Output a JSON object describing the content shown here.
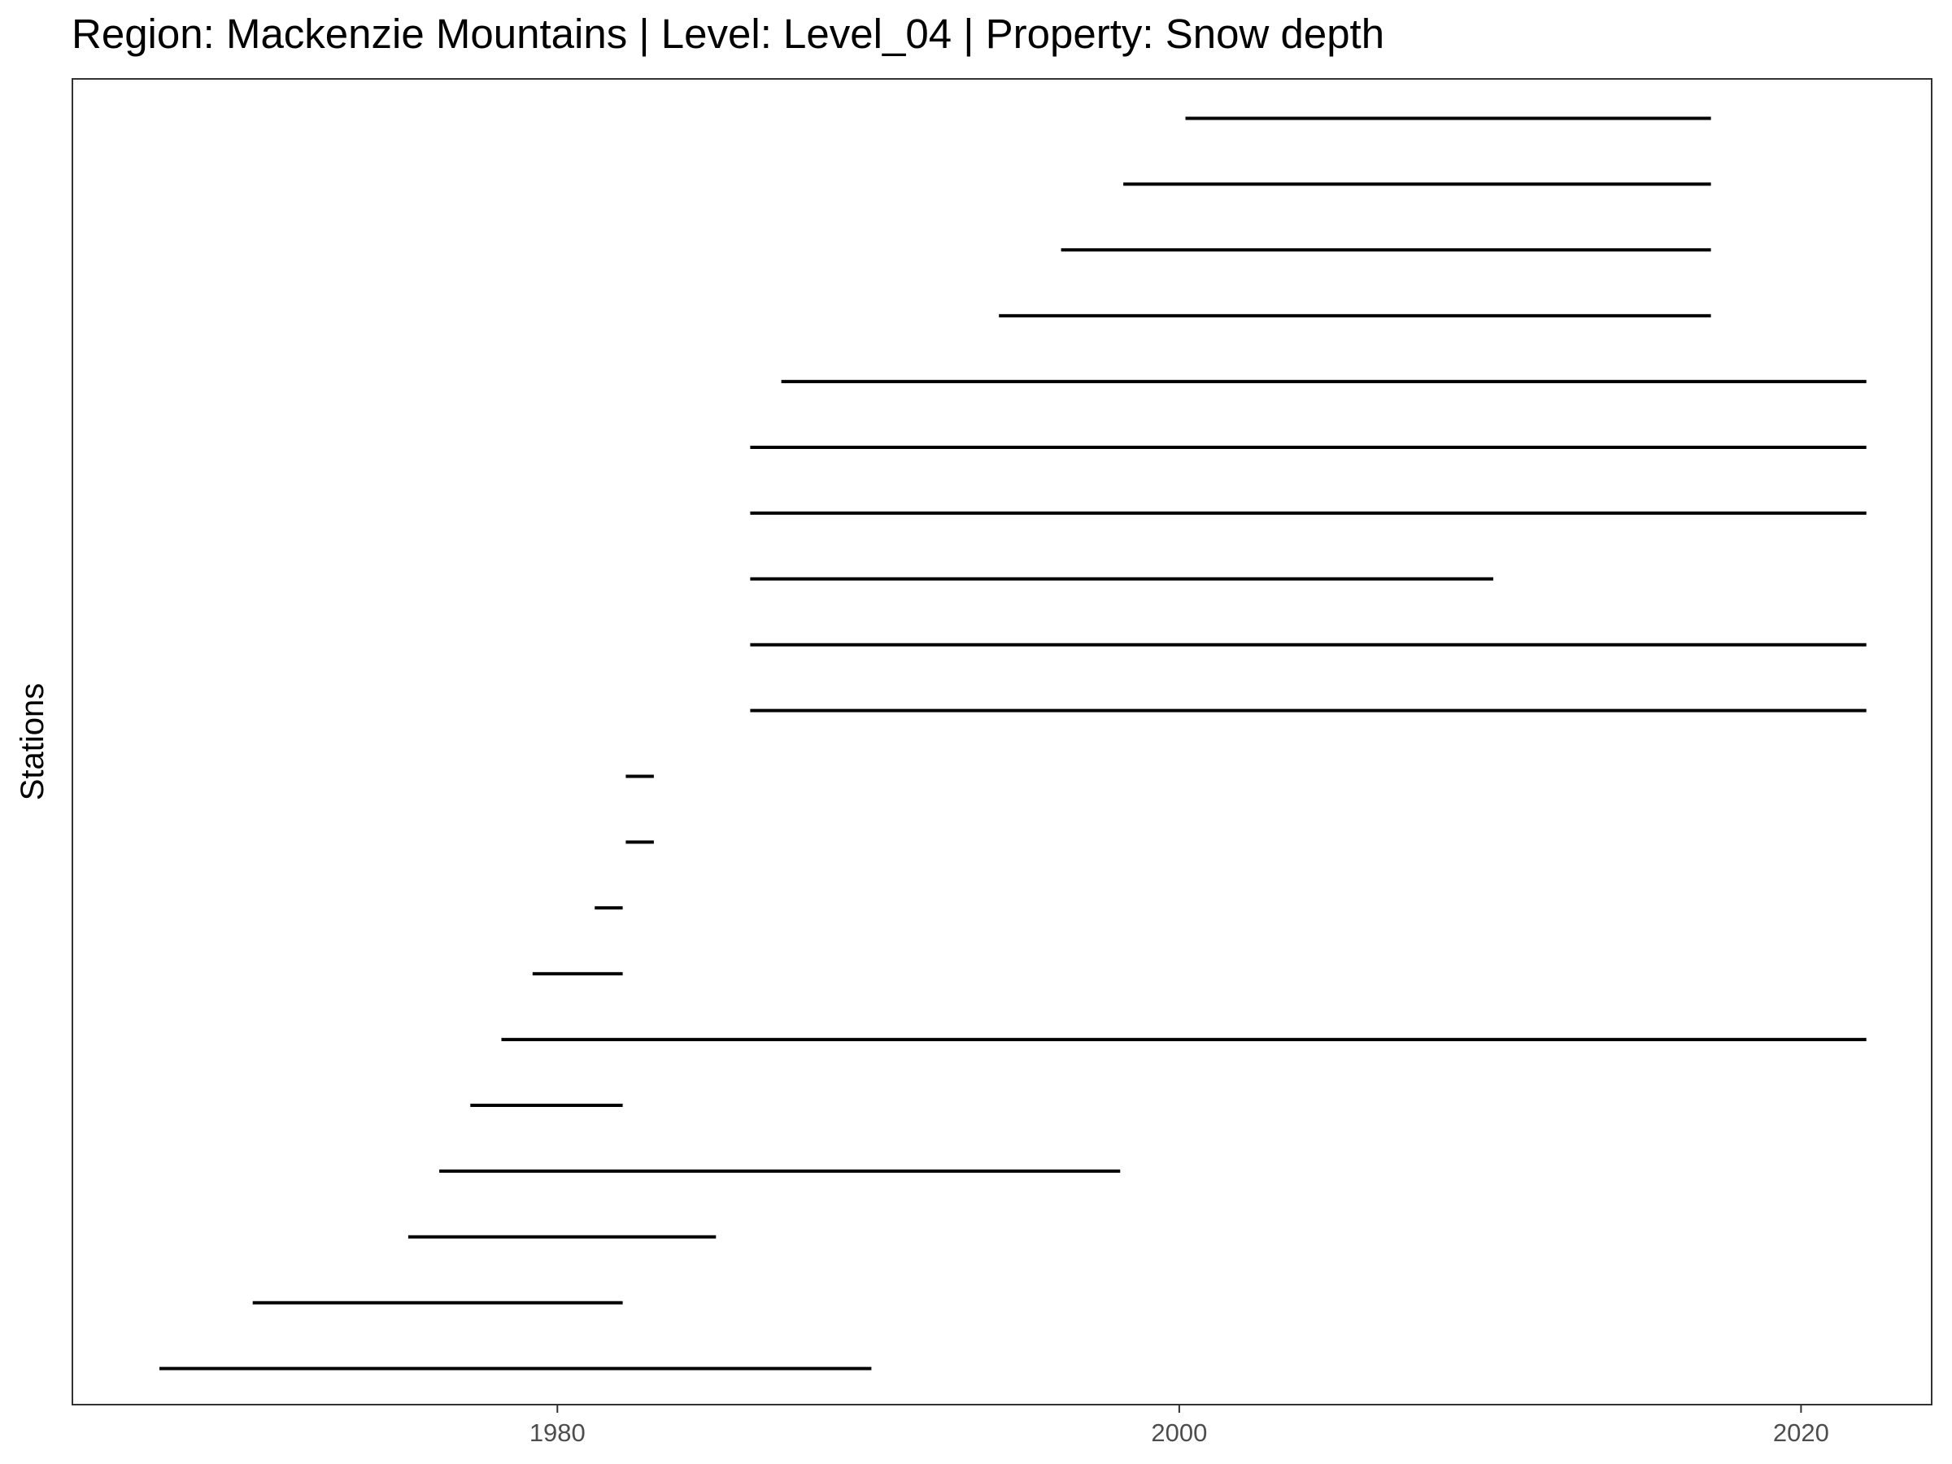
{
  "chart_data": {
    "type": "segment",
    "title": "Region: Mackenzie Mountains | Level: Level_04 | Property: Snow depth",
    "xlabel": "",
    "ylabel": "Stations",
    "xlim": [
      1964.4,
      2024.2
    ],
    "xticks": [
      1980,
      2000,
      2020
    ],
    "xtick_labels": [
      "1980",
      "2000",
      "2020"
    ],
    "grid": false,
    "legend": "none",
    "colors": {
      "segment": "#000000",
      "panel_border": "#333333",
      "tick_label": "#4d4d4d"
    },
    "segments": [
      {
        "start": 1967.2,
        "end": 1990.1
      },
      {
        "start": 1970.2,
        "end": 1982.1
      },
      {
        "start": 1975.2,
        "end": 1985.1
      },
      {
        "start": 1976.2,
        "end": 1998.1
      },
      {
        "start": 1977.2,
        "end": 1982.1
      },
      {
        "start": 1978.2,
        "end": 2022.1
      },
      {
        "start": 1979.2,
        "end": 1982.1
      },
      {
        "start": 1981.2,
        "end": 1982.1
      },
      {
        "start": 1982.2,
        "end": 1983.1
      },
      {
        "start": 1982.2,
        "end": 1983.1
      },
      {
        "start": 1986.2,
        "end": 2022.1
      },
      {
        "start": 1986.2,
        "end": 2022.1
      },
      {
        "start": 1986.2,
        "end": 2010.1
      },
      {
        "start": 1986.2,
        "end": 2022.1
      },
      {
        "start": 1986.2,
        "end": 2022.1
      },
      {
        "start": 1987.2,
        "end": 2022.1
      },
      {
        "start": 1994.2,
        "end": 2017.1
      },
      {
        "start": 1996.2,
        "end": 2017.1
      },
      {
        "start": 1998.2,
        "end": 2017.1
      },
      {
        "start": 2000.2,
        "end": 2017.1
      }
    ]
  }
}
